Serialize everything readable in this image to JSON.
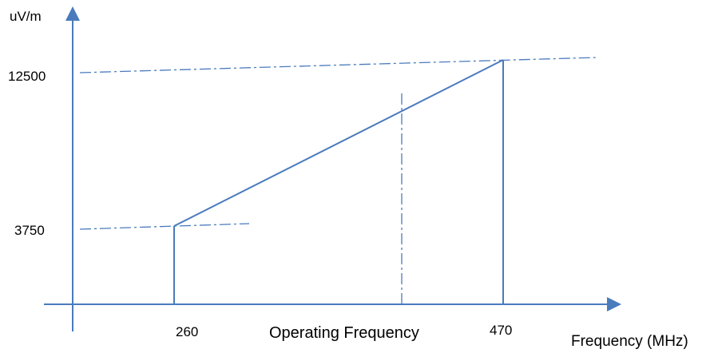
{
  "chart_data": {
    "type": "line",
    "title": "",
    "xlabel": "Frequency (MHz)",
    "ylabel": "uV/m",
    "x_tick_labels": [
      "260",
      "470"
    ],
    "y_tick_labels": [
      "3750",
      "12500"
    ],
    "annotation": "Operating Frequency",
    "x": [
      260,
      470
    ],
    "series": [
      {
        "values": [
          3750,
          12500
        ]
      }
    ],
    "reference_lines": {
      "vertical": [
        260,
        470
      ],
      "dash_dot_vertical": "Operating Frequency",
      "dash_dot_horizontal": [
        3750,
        12500
      ]
    },
    "grid": false,
    "legend": "none",
    "colors": {
      "axis": "#4a7bbd",
      "line": "#4a7bbd",
      "text": "#000000"
    }
  }
}
